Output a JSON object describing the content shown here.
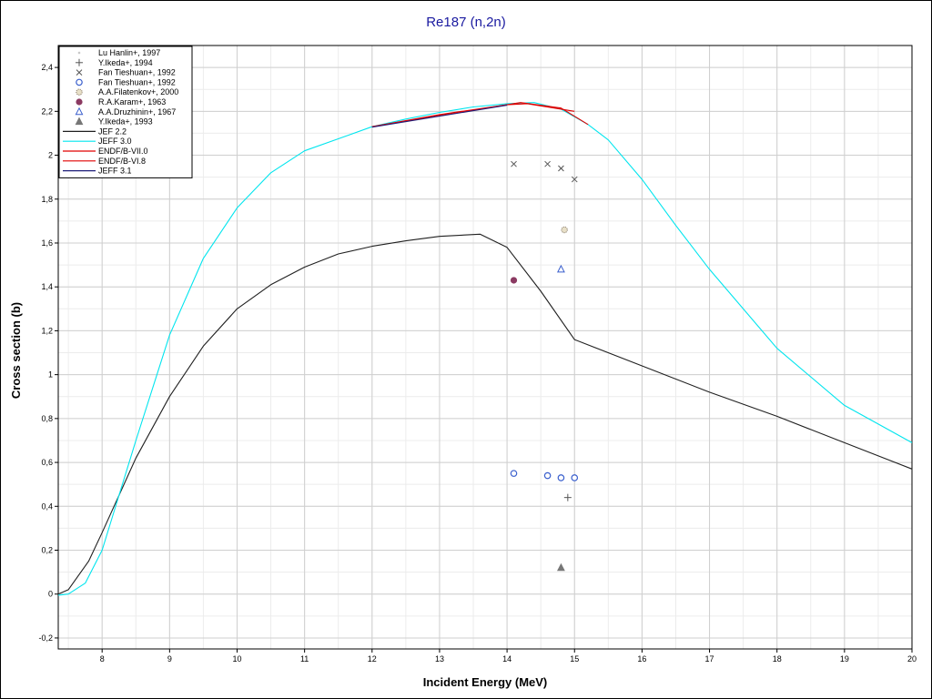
{
  "chart_data": {
    "type": "line",
    "title": "Re187 (n,2n)",
    "xlabel": "Incident Energy (MeV)",
    "ylabel": "Cross section (b)",
    "xlim": [
      7.35,
      20
    ],
    "ylim": [
      -0.25,
      2.5
    ],
    "x_ticks": [
      8,
      9,
      10,
      11,
      12,
      13,
      14,
      15,
      16,
      17,
      18,
      19,
      20
    ],
    "x_tick_labels": [
      "8",
      "9",
      "10",
      "11",
      "12",
      "13",
      "14",
      "15",
      "16",
      "17",
      "18",
      "19",
      "20"
    ],
    "y_ticks": [
      -0.2,
      0,
      0.2,
      0.4,
      0.6,
      0.8,
      1,
      1.2,
      1.4,
      1.6,
      1.8,
      2,
      2.2,
      2.4
    ],
    "y_tick_labels": [
      "-0,2",
      "0",
      "0,2",
      "0,4",
      "0,6",
      "0,8",
      "1",
      "1,2",
      "1,4",
      "1,6",
      "1,8",
      "2",
      "2,2",
      "2,4"
    ],
    "grid": true,
    "legend_position": "top-left",
    "series": [
      {
        "name": "Lu Hanlin+, 1997",
        "kind": "scatter",
        "marker": "dot",
        "color": "#c8c8c8",
        "points": []
      },
      {
        "name": "Y.Ikeda+, 1994",
        "kind": "scatter",
        "marker": "plus",
        "color": "#555555",
        "points": [
          [
            14.9,
            0.44
          ]
        ]
      },
      {
        "name": "Fan Tieshuan+, 1992",
        "kind": "scatter",
        "marker": "cross",
        "color": "#555555",
        "points": [
          [
            14.1,
            1.96
          ],
          [
            14.6,
            1.96
          ],
          [
            14.8,
            1.94
          ],
          [
            15.0,
            1.89
          ]
        ]
      },
      {
        "name": "Fan Tieshuan+, 1992",
        "kind": "scatter",
        "marker": "open-circle",
        "color": "#3a5fcd",
        "points": [
          [
            14.1,
            0.55
          ],
          [
            14.6,
            0.54
          ],
          [
            14.8,
            0.53
          ],
          [
            15.0,
            0.53
          ]
        ]
      },
      {
        "name": "A.A.Filatenkov+, 2000",
        "kind": "scatter",
        "marker": "dotted-circle",
        "color": "#8b7d6b",
        "points": [
          [
            14.85,
            1.66
          ]
        ]
      },
      {
        "name": "R.A.Karam+, 1963",
        "kind": "scatter",
        "marker": "filled-circle",
        "color": "#8b3a62",
        "points": [
          [
            14.1,
            1.43
          ]
        ]
      },
      {
        "name": "A.A.Druzhinin+, 1967",
        "kind": "scatter",
        "marker": "open-triangle",
        "color": "#3a5fcd",
        "points": [
          [
            14.8,
            1.48
          ]
        ]
      },
      {
        "name": "Y.Ikeda+, 1993",
        "kind": "scatter",
        "marker": "filled-triangle",
        "color": "#777777",
        "points": [
          [
            14.8,
            0.12
          ]
        ]
      },
      {
        "name": "JEF 2.2",
        "kind": "line",
        "color": "#202020",
        "points": [
          [
            7.35,
            0
          ],
          [
            7.5,
            0.02
          ],
          [
            7.8,
            0.15
          ],
          [
            8.0,
            0.28
          ],
          [
            8.5,
            0.62
          ],
          [
            9.0,
            0.9
          ],
          [
            9.5,
            1.13
          ],
          [
            10.0,
            1.3
          ],
          [
            10.5,
            1.41
          ],
          [
            11.0,
            1.49
          ],
          [
            11.5,
            1.55
          ],
          [
            12.0,
            1.585
          ],
          [
            12.5,
            1.61
          ],
          [
            13.0,
            1.63
          ],
          [
            13.6,
            1.64
          ],
          [
            14.0,
            1.58
          ],
          [
            14.5,
            1.38
          ],
          [
            15.0,
            1.16
          ],
          [
            16.0,
            1.04
          ],
          [
            17.0,
            0.92
          ],
          [
            18.0,
            0.81
          ],
          [
            19.0,
            0.69
          ],
          [
            20.0,
            0.57
          ]
        ]
      },
      {
        "name": "JEFF 3.0",
        "kind": "line",
        "color": "#00e5ee",
        "points": [
          [
            7.35,
            -0.005
          ],
          [
            7.5,
            0.0
          ],
          [
            7.75,
            0.05
          ],
          [
            8.0,
            0.2
          ],
          [
            8.5,
            0.7
          ],
          [
            9.0,
            1.18
          ],
          [
            9.5,
            1.53
          ],
          [
            10.0,
            1.76
          ],
          [
            10.5,
            1.92
          ],
          [
            11.0,
            2.02
          ],
          [
            11.5,
            2.075
          ],
          [
            12.0,
            2.13
          ],
          [
            12.5,
            2.165
          ],
          [
            13.0,
            2.195
          ],
          [
            13.5,
            2.22
          ],
          [
            14.0,
            2.235
          ],
          [
            14.4,
            2.24
          ],
          [
            14.8,
            2.21
          ],
          [
            15.2,
            2.14
          ],
          [
            15.5,
            2.07
          ],
          [
            16.0,
            1.89
          ],
          [
            16.5,
            1.68
          ],
          [
            17.0,
            1.48
          ],
          [
            18.0,
            1.12
          ],
          [
            19.0,
            0.86
          ],
          [
            20.0,
            0.69
          ]
        ]
      },
      {
        "name": "ENDF/B-VII.0",
        "kind": "line",
        "color": "#e00000",
        "points": [
          [
            12.0,
            2.13
          ],
          [
            13.0,
            2.185
          ],
          [
            14.0,
            2.23
          ],
          [
            14.2,
            2.24
          ],
          [
            14.8,
            2.215
          ],
          [
            15.2,
            2.14
          ]
        ]
      },
      {
        "name": "ENDF/B-VI.8",
        "kind": "line",
        "color": "#e00000",
        "points": [
          [
            12.0,
            2.13
          ],
          [
            13.0,
            2.18
          ],
          [
            14.0,
            2.23
          ],
          [
            14.3,
            2.235
          ],
          [
            15.0,
            2.2
          ]
        ]
      },
      {
        "name": "JEFF 3.1",
        "kind": "line",
        "color": "#1f1f7a",
        "points": [
          [
            12.0,
            2.128
          ],
          [
            13.0,
            2.178
          ],
          [
            14.0,
            2.228
          ]
        ]
      }
    ]
  }
}
